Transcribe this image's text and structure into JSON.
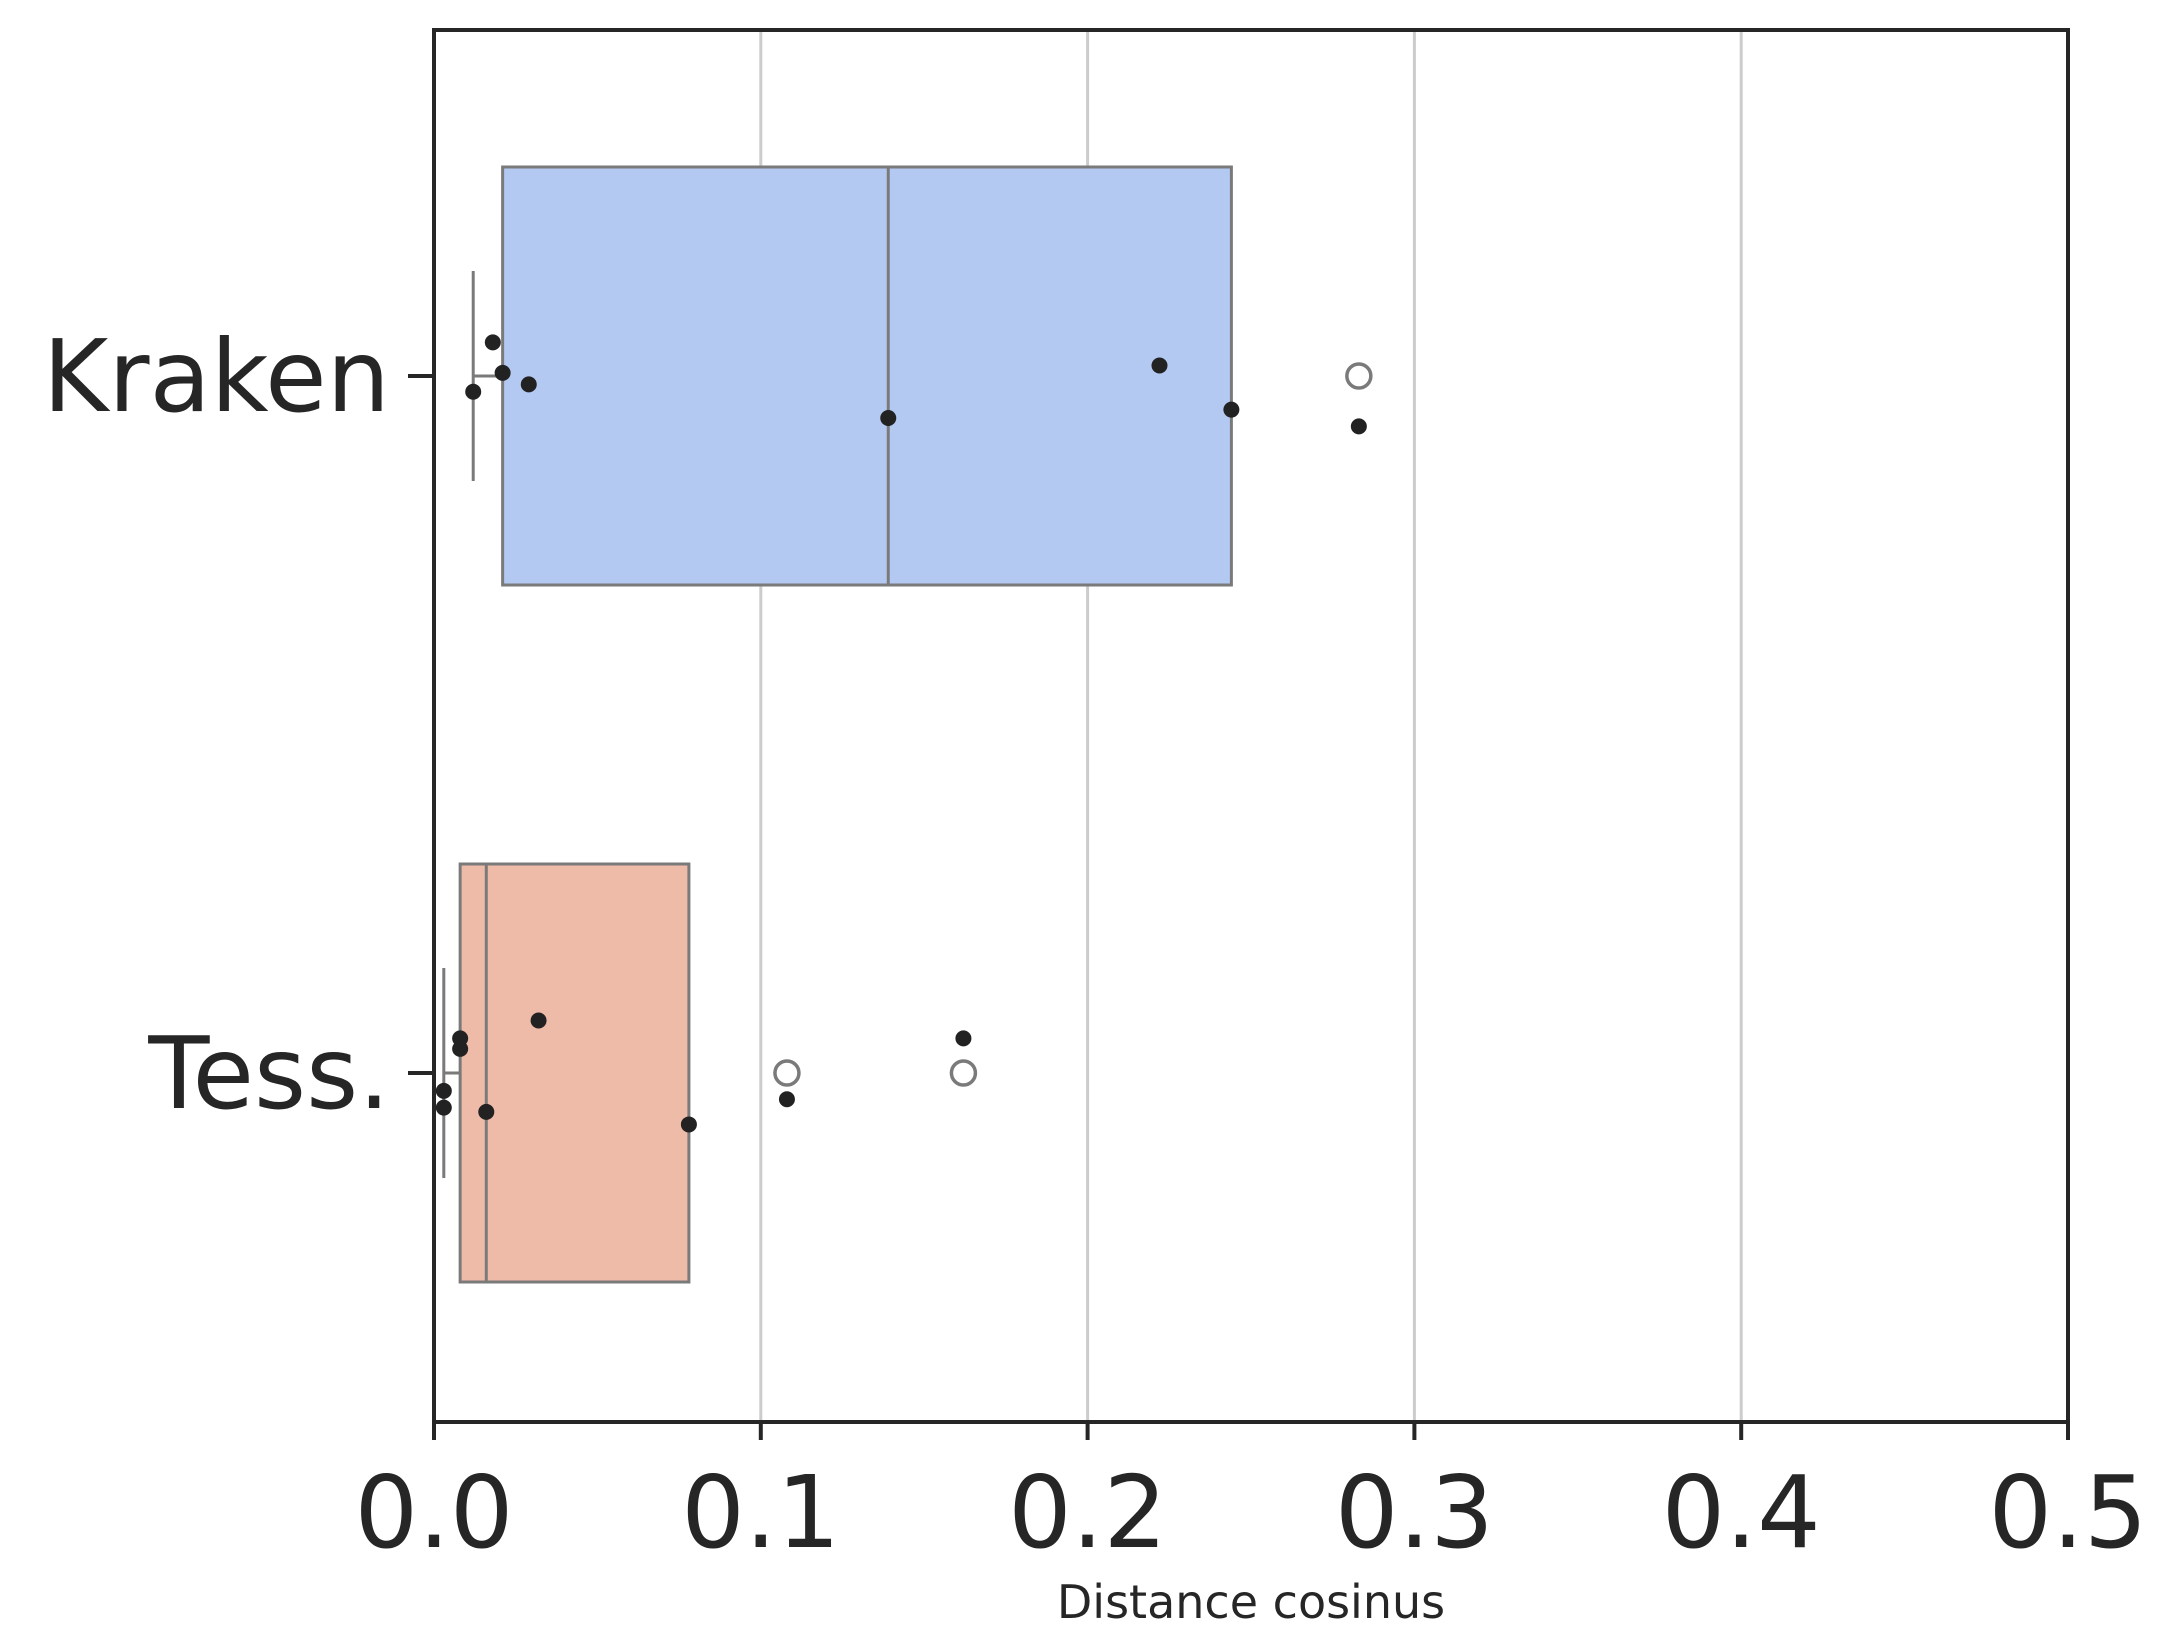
{
  "chart_data": {
    "type": "box",
    "orientation": "horizontal",
    "xlabel": "Distance cosinus",
    "ylabel": "",
    "title": "",
    "xlim": [
      0.0,
      0.5
    ],
    "xticks": [
      0.0,
      0.1,
      0.2,
      0.3,
      0.4,
      0.5
    ],
    "xtick_labels": [
      "0.0",
      "0.1",
      "0.2",
      "0.3",
      "0.4",
      "0.5"
    ],
    "grid": "vertical",
    "categories": [
      "Kraken",
      "Tess."
    ],
    "boxes": [
      {
        "category": "Kraken",
        "color": "#b4c9f2",
        "whisker_low": 0.012,
        "q1": 0.021,
        "median": 0.139,
        "q3": 0.244,
        "whisker_high": 0.244,
        "outliers": [
          0.283
        ],
        "points": [
          0.018,
          0.021,
          0.029,
          0.012,
          0.139,
          0.222,
          0.244,
          0.283
        ],
        "point_jitter": [
          -0.32,
          -0.03,
          0.08,
          0.15,
          0.4,
          -0.1,
          0.32,
          0.48
        ]
      },
      {
        "category": "Tess.",
        "color": "#edbba7",
        "whisker_low": 0.003,
        "q1": 0.008,
        "median": 0.016,
        "q3": 0.078,
        "whisker_high": 0.078,
        "outliers": [
          0.108,
          0.162
        ],
        "points": [
          0.032,
          0.008,
          0.008,
          0.003,
          0.003,
          0.016,
          0.078,
          0.108,
          0.162
        ],
        "point_jitter": [
          -0.5,
          -0.33,
          -0.23,
          0.17,
          0.33,
          0.37,
          0.49,
          0.25,
          -0.33
        ]
      }
    ],
    "colors": {
      "box_edge": "#7a7a7a",
      "point": "#222222",
      "outlier_edge": "#7a7a7a",
      "grid": "#cccccc",
      "frame": "#262626"
    }
  }
}
